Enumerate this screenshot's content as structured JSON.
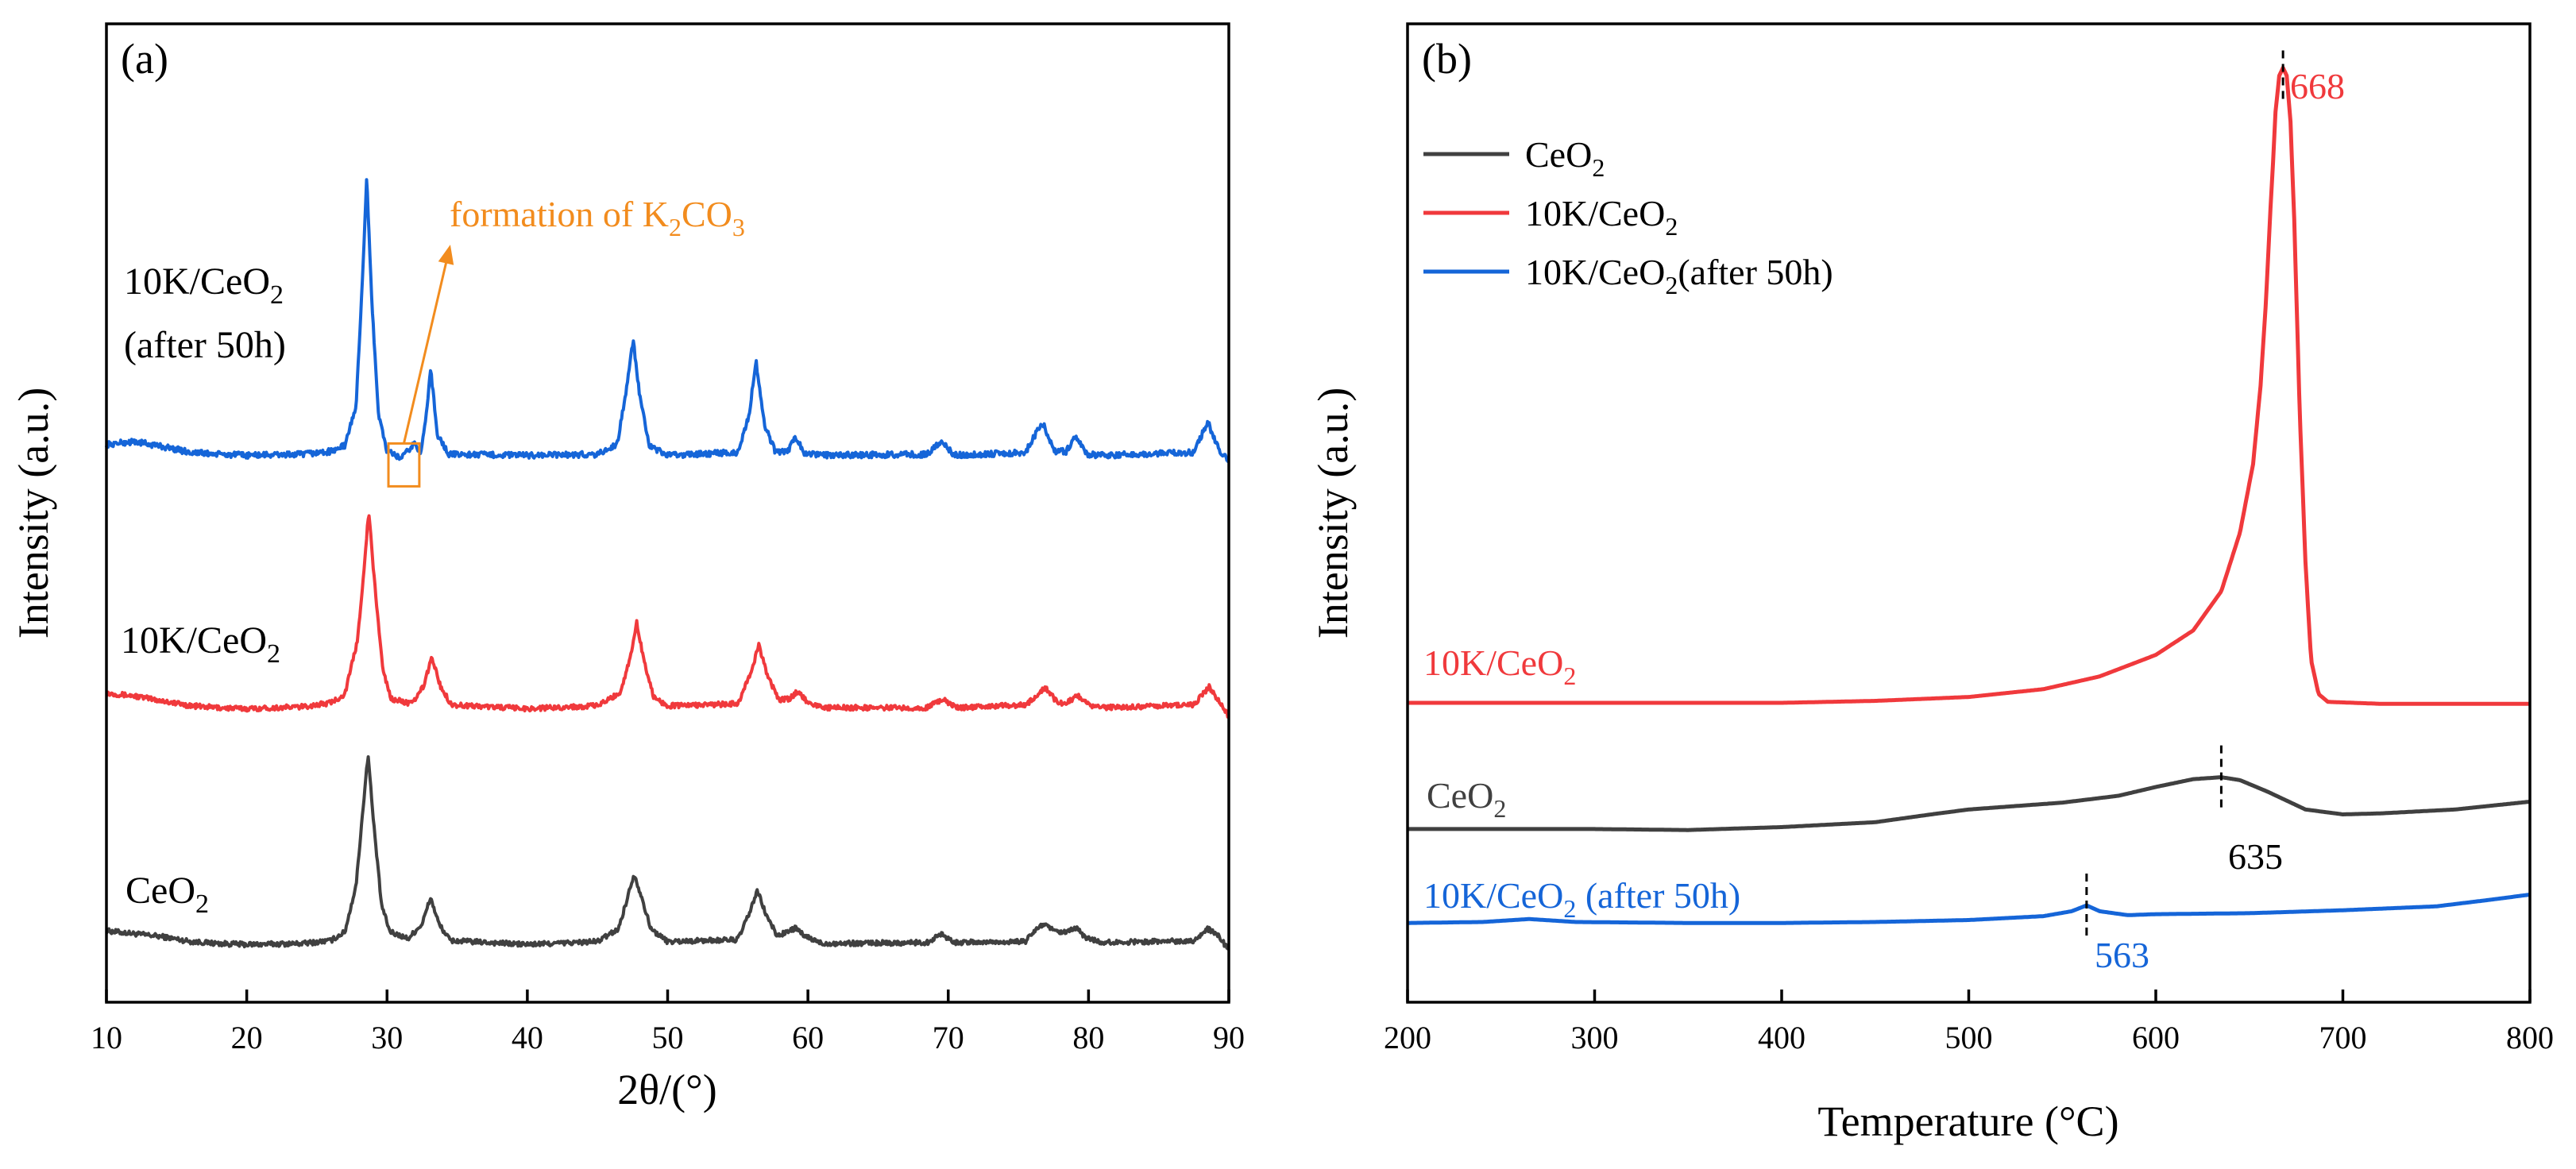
{
  "colors": {
    "ceo2": "#404040",
    "k10": "#f0393c",
    "after50h": "#1565d8",
    "orange": "#f28c1e",
    "axis": "#000000"
  },
  "chart_data": [
    {
      "type": "line",
      "panel_label": "(a)",
      "title": "",
      "xlabel": "2θ/(°)",
      "ylabel": "Intensity (a.u.)",
      "xlim": [
        10,
        90
      ],
      "ylim": [
        0,
        100
      ],
      "xticks": [
        "10",
        "20",
        "30",
        "40",
        "50",
        "60",
        "70",
        "80",
        "90"
      ],
      "y_ticks_shown": false,
      "peaks_2theta": [
        28.6,
        33.1,
        47.5,
        56.4,
        59.1,
        69.5,
        76.8,
        79.1,
        88.5
      ],
      "series": [
        {
          "name": "CeO2",
          "label_main": "CeO",
          "label_sub": "2",
          "color": "#404040",
          "baseline": 5.5,
          "noise": 0.25,
          "points": [
            [
              10,
              7.3
            ],
            [
              12,
              7.0
            ],
            [
              14,
              6.7
            ],
            [
              16,
              6.2
            ],
            [
              18,
              6.0
            ],
            [
              20,
              5.9
            ],
            [
              24,
              6.0
            ],
            [
              26,
              6.3
            ],
            [
              27,
              7.2
            ],
            [
              27.8,
              12
            ],
            [
              28.3,
              20
            ],
            [
              28.65,
              25.4
            ],
            [
              29.0,
              19
            ],
            [
              29.6,
              10
            ],
            [
              30.2,
              7.2
            ],
            [
              31.5,
              6.5
            ],
            [
              32.5,
              8
            ],
            [
              33.1,
              10.7
            ],
            [
              33.7,
              8
            ],
            [
              34.5,
              6.3
            ],
            [
              40,
              5.9
            ],
            [
              45,
              6.2
            ],
            [
              46.5,
              7.5
            ],
            [
              47.2,
              11
            ],
            [
              47.6,
              13.1
            ],
            [
              48.1,
              11
            ],
            [
              48.8,
              7.5
            ],
            [
              50,
              6.2
            ],
            [
              55,
              6.4
            ],
            [
              55.8,
              9
            ],
            [
              56.4,
              11.4
            ],
            [
              57.0,
              9
            ],
            [
              57.8,
              6.8
            ],
            [
              58.6,
              7.2
            ],
            [
              59.1,
              7.6
            ],
            [
              59.7,
              6.8
            ],
            [
              61,
              6.0
            ],
            [
              68.5,
              6.1
            ],
            [
              69.5,
              7.0
            ],
            [
              70.5,
              6.1
            ],
            [
              75.5,
              6.2
            ],
            [
              76.3,
              7.5
            ],
            [
              76.8,
              8.0
            ],
            [
              77.6,
              7.2
            ],
            [
              78.4,
              7.1
            ],
            [
              79.1,
              7.6
            ],
            [
              79.8,
              6.6
            ],
            [
              81,
              6.1
            ],
            [
              87.5,
              6.3
            ],
            [
              88.5,
              7.5
            ],
            [
              89.3,
              6.7
            ],
            [
              90,
              5.3
            ]
          ]
        },
        {
          "name": "10K/CeO2",
          "label_main": "10K/CeO",
          "label_sub": "2",
          "color": "#f0393c",
          "baseline": 29.5,
          "noise": 0.25,
          "points": [
            [
              10,
              31.6
            ],
            [
              12,
              31.3
            ],
            [
              14,
              30.8
            ],
            [
              16,
              30.3
            ],
            [
              18,
              30.1
            ],
            [
              20,
              30.0
            ],
            [
              24,
              30.2
            ],
            [
              26,
              30.6
            ],
            [
              27,
              31.5
            ],
            [
              27.9,
              37
            ],
            [
              28.4,
              45
            ],
            [
              28.7,
              50.2
            ],
            [
              29.1,
              43
            ],
            [
              29.7,
              34
            ],
            [
              30.3,
              31.0
            ],
            [
              31.8,
              30.5
            ],
            [
              32.6,
              32.3
            ],
            [
              33.2,
              35.3
            ],
            [
              33.8,
              32.3
            ],
            [
              34.6,
              30.4
            ],
            [
              40,
              30.0
            ],
            [
              45,
              30.3
            ],
            [
              46.6,
              31.6
            ],
            [
              47.3,
              35
            ],
            [
              47.8,
              38.8
            ],
            [
              48.3,
              35
            ],
            [
              49.0,
              31.2
            ],
            [
              50,
              30.3
            ],
            [
              55,
              30.5
            ],
            [
              55.9,
              33.5
            ],
            [
              56.5,
              36.5
            ],
            [
              57.1,
              33.5
            ],
            [
              57.9,
              30.9
            ],
            [
              58.7,
              31.0
            ],
            [
              59.3,
              31.8
            ],
            [
              59.9,
              30.8
            ],
            [
              61,
              30.1
            ],
            [
              68.5,
              30.1
            ],
            [
              69.6,
              31.0
            ],
            [
              70.6,
              30.1
            ],
            [
              75.6,
              30.4
            ],
            [
              76.9,
              32.2
            ],
            [
              77.8,
              30.6
            ],
            [
              78.5,
              30.6
            ],
            [
              79.2,
              31.4
            ],
            [
              80.0,
              30.4
            ],
            [
              81,
              30.1
            ],
            [
              87.5,
              30.4
            ],
            [
              88.6,
              32.2
            ],
            [
              89.4,
              30.6
            ],
            [
              90,
              29.2
            ]
          ]
        },
        {
          "name": "10K/CeO2 (after 50h)",
          "label_main": "10K/CeO",
          "label_sub": "2",
          "label_line2": "(after 50h)",
          "color": "#1565d8",
          "baseline": 55.0,
          "noise": 0.3,
          "points": [
            [
              10,
              57.0
            ],
            [
              12,
              57.3
            ],
            [
              14,
              56.8
            ],
            [
              16,
              56.2
            ],
            [
              18,
              56.0
            ],
            [
              20,
              55.9
            ],
            [
              24,
              56.0
            ],
            [
              26,
              56.3
            ],
            [
              27,
              56.9
            ],
            [
              27.8,
              61
            ],
            [
              28.25,
              74
            ],
            [
              28.55,
              84.3
            ],
            [
              28.9,
              72
            ],
            [
              29.4,
              60
            ],
            [
              30.0,
              56.3
            ],
            [
              31.0,
              55.6
            ],
            [
              31.6,
              56.5
            ],
            [
              32.0,
              57.2
            ],
            [
              32.4,
              56.0
            ],
            [
              32.8,
              60
            ],
            [
              33.1,
              64.8
            ],
            [
              33.6,
              58
            ],
            [
              34.4,
              56.0
            ],
            [
              40,
              55.9
            ],
            [
              45,
              56.0
            ],
            [
              46.4,
              57
            ],
            [
              47.1,
              63
            ],
            [
              47.55,
              67.7
            ],
            [
              48.0,
              62
            ],
            [
              48.7,
              56.8
            ],
            [
              50,
              55.9
            ],
            [
              55,
              56.2
            ],
            [
              55.8,
              60
            ],
            [
              56.3,
              65.5
            ],
            [
              56.9,
              59
            ],
            [
              57.7,
              56.2
            ],
            [
              58.6,
              56.4
            ],
            [
              59.1,
              57.9
            ],
            [
              59.7,
              56.2
            ],
            [
              61,
              55.9
            ],
            [
              68.5,
              56.0
            ],
            [
              69.5,
              57.4
            ],
            [
              70.4,
              55.9
            ],
            [
              75.5,
              56.2
            ],
            [
              76.7,
              59.3
            ],
            [
              77.6,
              56.3
            ],
            [
              78.4,
              56.3
            ],
            [
              79.1,
              57.9
            ],
            [
              79.9,
              56.0
            ],
            [
              81,
              55.9
            ],
            [
              87.5,
              56.2
            ],
            [
              88.5,
              59.3
            ],
            [
              89.3,
              56.4
            ],
            [
              90,
              55.3
            ]
          ]
        }
      ],
      "annotations": {
        "k2co3_box_2theta": [
          30.1,
          32.3
        ],
        "k2co3_text_main": "formation of K",
        "k2co3_text_sub1": "2",
        "k2co3_text_mid": "CO",
        "k2co3_text_sub2": "3"
      }
    },
    {
      "type": "line",
      "panel_label": "(b)",
      "title": "",
      "xlabel": "Temperature (°C)",
      "ylabel": "Intensity (a.u.)",
      "xlim": [
        200,
        800
      ],
      "ylim": [
        0,
        100
      ],
      "xticks": [
        "200",
        "300",
        "400",
        "500",
        "600",
        "700",
        "800"
      ],
      "y_ticks_shown": false,
      "legend_position": "top-left",
      "legend": [
        {
          "main": "CeO",
          "sub": "2",
          "tail": "",
          "color": "#404040"
        },
        {
          "main": "10K/CeO",
          "sub": "2",
          "tail": "",
          "color": "#f0393c"
        },
        {
          "main": "10K/CeO",
          "sub": "2",
          "tail": "(after 50h)",
          "color": "#1565d8"
        }
      ],
      "series": [
        {
          "name": "10K/CeO2",
          "label_main": "10K/CeO",
          "label_sub": "2",
          "color": "#f0393c",
          "peak_label": "668",
          "peak_temp": 668,
          "points": [
            [
              200,
              30.6
            ],
            [
              300,
              30.6
            ],
            [
              400,
              30.6
            ],
            [
              450,
              30.8
            ],
            [
              500,
              31.2
            ],
            [
              540,
              32.0
            ],
            [
              570,
              33.3
            ],
            [
              600,
              35.5
            ],
            [
              620,
              38
            ],
            [
              635,
              42
            ],
            [
              645,
              48
            ],
            [
              652,
              55
            ],
            [
              656,
              63
            ],
            [
              659,
              72
            ],
            [
              661,
              80
            ],
            [
              663,
              87
            ],
            [
              664,
              91
            ],
            [
              666,
              94.7
            ],
            [
              668,
              95.5
            ],
            [
              670,
              94.7
            ],
            [
              672,
              90
            ],
            [
              674,
              80
            ],
            [
              677,
              60
            ],
            [
              680,
              45
            ],
            [
              683,
              35
            ],
            [
              687,
              31.5
            ],
            [
              692,
              30.7
            ],
            [
              720,
              30.5
            ],
            [
              800,
              30.5
            ]
          ]
        },
        {
          "name": "CeO2",
          "label_main": "CeO",
          "label_sub": "2",
          "color": "#404040",
          "peak_label": "635",
          "peak_temp": 635,
          "points": [
            [
              200,
              17.7
            ],
            [
              300,
              17.7
            ],
            [
              350,
              17.6
            ],
            [
              400,
              17.9
            ],
            [
              450,
              18.4
            ],
            [
              480,
              19.2
            ],
            [
              500,
              19.7
            ],
            [
              550,
              20.4
            ],
            [
              580,
              21.1
            ],
            [
              600,
              22.0
            ],
            [
              620,
              22.8
            ],
            [
              635,
              23.0
            ],
            [
              645,
              22.7
            ],
            [
              660,
              21.5
            ],
            [
              680,
              19.7
            ],
            [
              700,
              19.2
            ],
            [
              720,
              19.3
            ],
            [
              760,
              19.7
            ],
            [
              800,
              20.5
            ]
          ]
        },
        {
          "name": "10K/CeO2 (after 50h)",
          "label_main": "10K/CeO",
          "label_sub": "2",
          "label_tail": " (after 50h)",
          "color": "#1565d8",
          "peak_label": "563",
          "peak_temp": 563,
          "points": [
            [
              200,
              8.1
            ],
            [
              240,
              8.2
            ],
            [
              265,
              8.5
            ],
            [
              290,
              8.2
            ],
            [
              350,
              8.1
            ],
            [
              400,
              8.1
            ],
            [
              450,
              8.2
            ],
            [
              500,
              8.4
            ],
            [
              540,
              8.8
            ],
            [
              555,
              9.3
            ],
            [
              563,
              9.9
            ],
            [
              570,
              9.3
            ],
            [
              585,
              8.9
            ],
            [
              600,
              9.0
            ],
            [
              650,
              9.1
            ],
            [
              700,
              9.4
            ],
            [
              750,
              9.8
            ],
            [
              780,
              10.5
            ],
            [
              800,
              11.0
            ]
          ]
        }
      ]
    }
  ]
}
